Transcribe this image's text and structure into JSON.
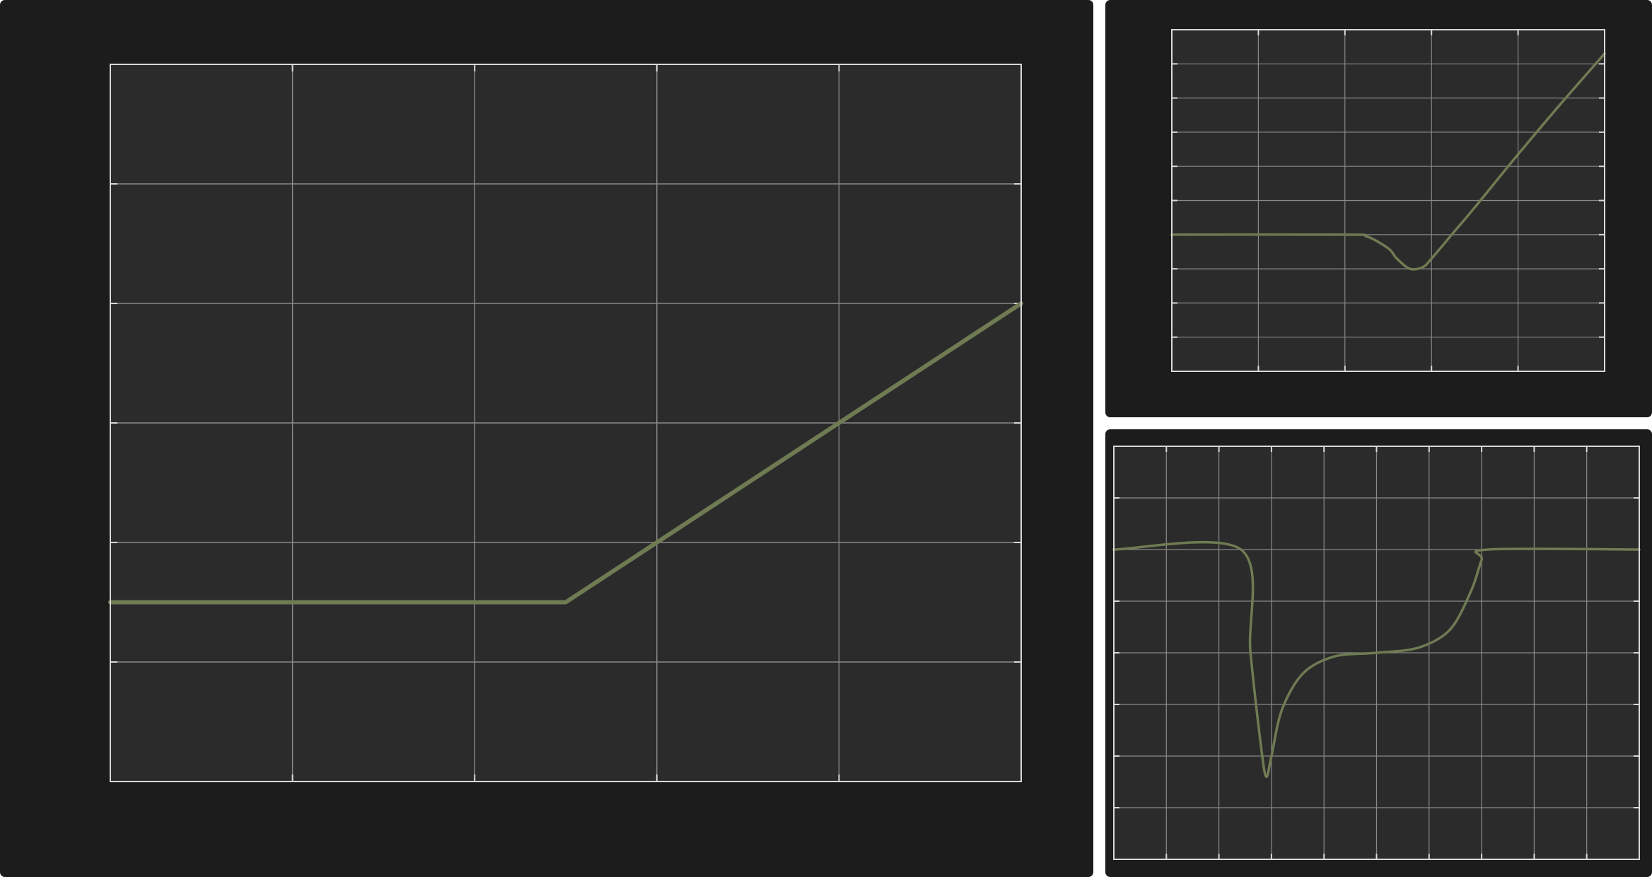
{
  "theme": {
    "panel_bg": "#1c1c1c",
    "plot_bg": "#2b2b2b",
    "grid_color": "#8a8a8a",
    "frame_color": "#d9d9d9",
    "line_color": "#6f7b53"
  },
  "chart_data": [
    {
      "type": "line",
      "title": "",
      "xlabel": "",
      "ylabel": "",
      "xlim": [
        0,
        5
      ],
      "ylim": [
        0,
        6
      ],
      "x_tick_count": 6,
      "y_tick_count": 7,
      "tick_marks": true,
      "grid": true,
      "series": [
        {
          "name": "",
          "x": [
            0,
            2.5,
            5
          ],
          "y": [
            1.5,
            1.5,
            4.0
          ]
        }
      ]
    },
    {
      "type": "line",
      "title": "",
      "xlabel": "",
      "ylabel": "",
      "xlim": [
        0,
        5
      ],
      "ylim": [
        0,
        10
      ],
      "x_tick_count": 6,
      "y_tick_count": 11,
      "tick_marks": true,
      "grid": true,
      "series": [
        {
          "name": "",
          "x": [
            0,
            2.0,
            2.25,
            2.5,
            2.6,
            2.75,
            2.9,
            3.0,
            3.25,
            3.5,
            4.0,
            4.5,
            5.0
          ],
          "y": [
            4.0,
            4.0,
            3.95,
            3.6,
            3.3,
            3.0,
            3.05,
            3.3,
            4.05,
            4.8,
            6.35,
            7.85,
            9.3
          ]
        }
      ]
    },
    {
      "type": "line",
      "title": "",
      "xlabel": "",
      "ylabel": "",
      "xlim": [
        0,
        10
      ],
      "ylim": [
        0,
        8
      ],
      "x_tick_count": 11,
      "y_tick_count": 9,
      "tick_marks": true,
      "grid": true,
      "series": [
        {
          "name": "",
          "x": [
            0,
            2.42,
            2.6,
            2.8,
            2.9,
            3.0,
            3.2,
            3.6,
            4.2,
            5.0,
            5.8,
            6.4,
            6.8,
            7.0,
            7.12,
            10.0
          ],
          "y": [
            6.0,
            6.0,
            4.0,
            2.2,
            1.6,
            2.0,
            2.9,
            3.6,
            3.93,
            4.0,
            4.1,
            4.45,
            5.2,
            5.8,
            6.0,
            6.0
          ]
        }
      ]
    }
  ]
}
